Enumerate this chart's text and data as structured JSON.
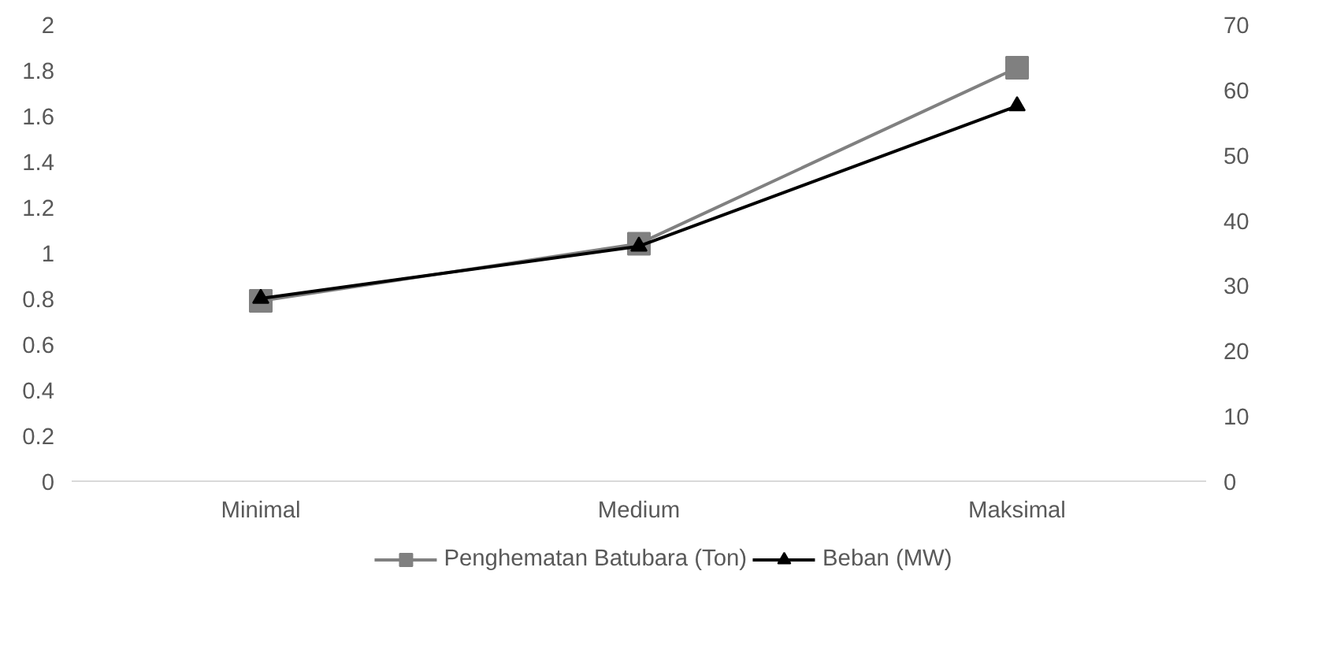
{
  "chart_data": {
    "type": "line",
    "categories": [
      "Minimal",
      "Medium",
      "Maksimal"
    ],
    "series": [
      {
        "name": "Penghematan Batubara (Ton)",
        "color": "#808080",
        "values": [
          0.79,
          1.04,
          1.81
        ],
        "marker": "square"
      },
      {
        "name": "Beban (MW)",
        "color": "#000000",
        "values": [
          28,
          36,
          57.5
        ],
        "marker": "triangle",
        "axis": "y2"
      }
    ],
    "ylim": [
      0,
      2
    ],
    "yticks": [
      0,
      0.2,
      0.4,
      0.6,
      0.8,
      1,
      1.2,
      1.4,
      1.6,
      1.8,
      2
    ],
    "y2lim": [
      0,
      70
    ],
    "y2ticks": [
      0,
      10,
      20,
      30,
      40,
      50,
      60,
      70
    ],
    "legend": "bottom",
    "grid": false
  }
}
